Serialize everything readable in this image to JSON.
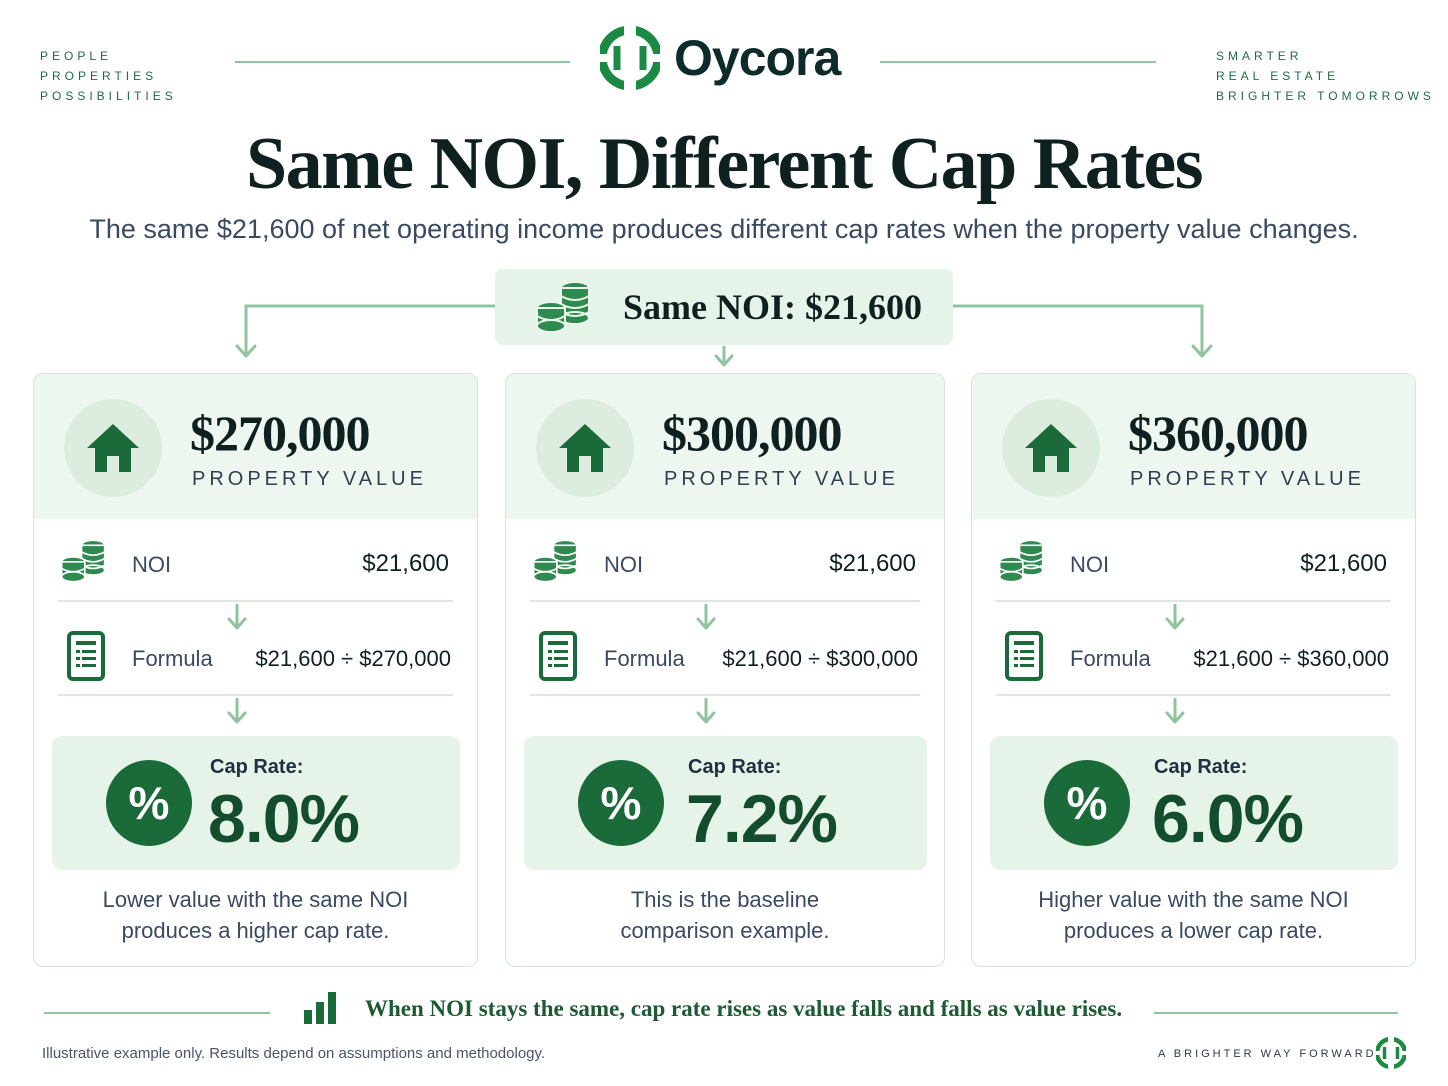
{
  "brand": {
    "name": "Oycora",
    "left_tag": [
      "PEOPLE",
      "PROPERTIES",
      "POSSIBILITIES"
    ],
    "right_tag": [
      "SMARTER",
      "REAL ESTATE",
      "BRIGHTER TOMORROWS"
    ],
    "accent_color": "#1b6a3a"
  },
  "title": "Same NOI, Different Cap Rates",
  "subtitle": "The same $21,600 of net operating income produces different cap rates when the property value changes.",
  "noi_banner": {
    "label": "Same NOI: $21,600",
    "icon": "coins-icon"
  },
  "cards": [
    {
      "value": "$270,000",
      "value_label": "PROPERTY VALUE",
      "noi_label": "NOI",
      "noi_value": "$21,600",
      "formula_label": "Formula",
      "formula_value": "$21,600 ÷ $270,000",
      "cap_label": "Cap Rate:",
      "cap_value": "8.0%",
      "note_line1": "Lower value with the same NOI",
      "note_line2": "produces a higher cap rate."
    },
    {
      "value": "$300,000",
      "value_label": "PROPERTY VALUE",
      "noi_label": "NOI",
      "noi_value": "$21,600",
      "formula_label": "Formula",
      "formula_value": "$21,600 ÷ $300,000",
      "cap_label": "Cap Rate:",
      "cap_value": "7.2%",
      "note_line1": "This is the baseline",
      "note_line2": "comparison example."
    },
    {
      "value": "$360,000",
      "value_label": "PROPERTY VALUE",
      "noi_label": "NOI",
      "noi_value": "$21,600",
      "formula_label": "Formula",
      "formula_value": "$21,600 ÷ $360,000",
      "cap_label": "Cap Rate:",
      "cap_value": "6.0%",
      "note_line1": "Higher value with the same NOI",
      "note_line2": "produces a lower cap rate."
    }
  ],
  "percent_symbol": "%",
  "footer": {
    "message": "When NOI stays the same, cap rate rises as value falls and falls as value rises.",
    "disclaimer": "Illustrative example only. Results depend on assumptions and methodology.",
    "tagline": "A BRIGHTER WAY FORWARD"
  }
}
